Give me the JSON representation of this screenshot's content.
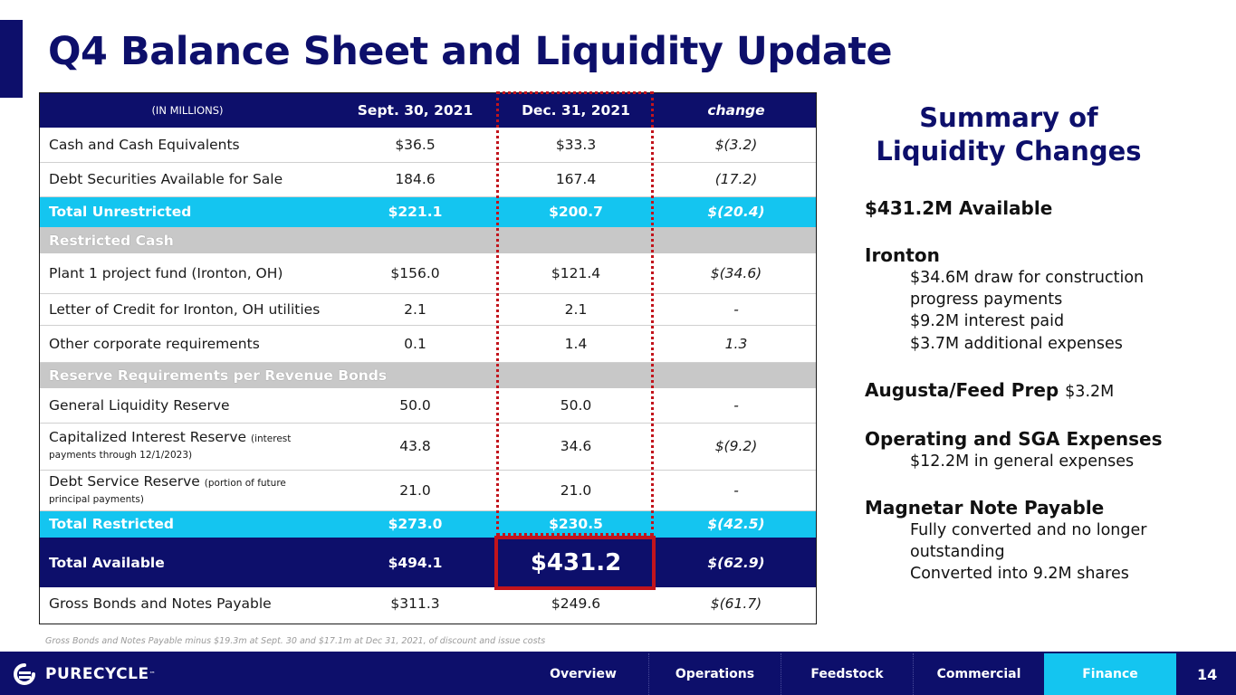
{
  "header": {
    "title": "Q4 Balance Sheet and Liquidity Update"
  },
  "table": {
    "columns": [
      "(IN MILLIONS)",
      "Sept. 30, 2021",
      "Dec. 31, 2021",
      "change"
    ],
    "rows": [
      {
        "label": "Cash and Cash Equivalents",
        "sept": "$36.5",
        "dec": "$33.3",
        "change": "$(3.2)"
      },
      {
        "label": "Debt Securities Available for Sale",
        "sept": "184.6",
        "dec": "167.4",
        "change": "(17.2)"
      },
      {
        "label": "Total Unrestricted",
        "sept": "$221.1",
        "dec": "$200.7",
        "change": "$(20.4)"
      },
      {
        "label": "Restricted Cash"
      },
      {
        "label": "Plant 1 project fund (Ironton, OH)",
        "sept": "$156.0",
        "dec": "$121.4",
        "change": "$(34.6)"
      },
      {
        "label": "Letter of Credit for Ironton, OH utilities",
        "sept": "2.1",
        "dec": "2.1",
        "change": "-"
      },
      {
        "label": "Other corporate requirements",
        "sept": "0.1",
        "dec": "1.4",
        "change": "1.3"
      },
      {
        "label": "Reserve Requirements per Revenue Bonds"
      },
      {
        "label": "General Liquidity Reserve",
        "sept": "50.0",
        "dec": "50.0",
        "change": "-"
      },
      {
        "label": "Capitalized Interest Reserve",
        "note": "(interest payments through 12/1/2023)",
        "sept": "43.8",
        "dec": "34.6",
        "change": "$(9.2)"
      },
      {
        "label": "Debt Service Reserve",
        "note": "(portion of future principal payments)",
        "sept": "21.0",
        "dec": "21.0",
        "change": "-"
      },
      {
        "label": "Total Restricted",
        "sept": "$273.0",
        "dec": "$230.5",
        "change": "$(42.5)"
      },
      {
        "label": "Total Available",
        "sept": "$494.1",
        "dec": "$431.2",
        "change": "$(62.9)"
      },
      {
        "label": "Gross Bonds and Notes Payable",
        "sept": "$311.3",
        "dec": "$249.6",
        "change": "$(61.7)"
      }
    ]
  },
  "footnote": "Gross Bonds and Notes Payable minus $19.3m at Sept. 30 and $17.1m at Dec 31, 2021, of discount and issue costs",
  "summary": {
    "title_line1": "Summary of",
    "title_line2": "Liquidity Changes",
    "available": "$431.2M Available",
    "ironton": {
      "head": "Ironton",
      "lines": [
        "$34.6M draw for construction",
        "progress payments",
        "$9.2M interest paid",
        "$3.7M additional expenses"
      ]
    },
    "augusta": {
      "head": "Augusta/Feed Prep",
      "value": "$3.2M"
    },
    "operating": {
      "head": "Operating and SGA Expenses",
      "lines": [
        "$12.2M in general expenses"
      ]
    },
    "magnetar": {
      "head": "Magnetar Note Payable",
      "lines": [
        "Fully converted and no longer",
        "outstanding",
        "Converted into 9.2M shares"
      ]
    }
  },
  "footer": {
    "logo": "PURECYCLE",
    "logo_tm": "™",
    "nav": [
      "Overview",
      "Operations",
      "Feedstock",
      "Commercial",
      "Finance"
    ],
    "active": "Finance",
    "page": "14"
  },
  "colors": {
    "navy": "#0d0f6b",
    "cyan": "#14c5f0",
    "gray": "#c8c8c8",
    "highlight_red": "#c2141c"
  }
}
